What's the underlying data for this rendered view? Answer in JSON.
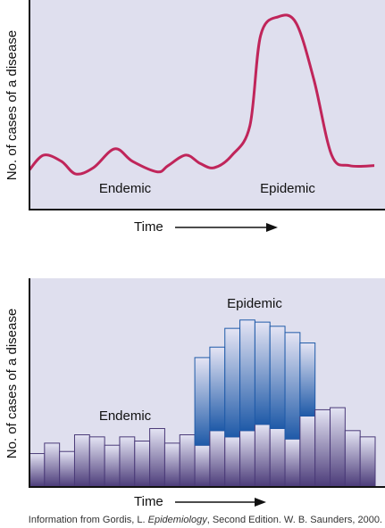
{
  "chart_data": [
    {
      "type": "line",
      "x_label": "Time",
      "y_label": "No. of cases of a disease",
      "annotations": [
        "Endemic",
        "Epidemic"
      ],
      "x": [
        0,
        4,
        9,
        13,
        18,
        24,
        29,
        36,
        39,
        44,
        48,
        52,
        57,
        62,
        65,
        70,
        75,
        80,
        85,
        90,
        97
      ],
      "values": [
        19,
        26,
        23,
        17,
        20,
        29,
        23,
        18,
        21,
        26,
        22,
        20,
        26,
        40,
        83,
        92,
        89,
        62,
        26,
        21,
        21
      ],
      "color": "#c0255a",
      "xlim": [
        0,
        100
      ],
      "ylim": [
        0,
        100
      ]
    },
    {
      "type": "stacked_bar",
      "x_label": "Time",
      "y_label": "No. of cases of a disease",
      "categories": [
        null,
        null,
        null,
        null,
        null,
        null,
        null,
        null,
        null,
        null,
        null,
        null,
        null,
        null,
        null,
        null,
        null,
        null,
        null,
        null,
        null,
        null,
        null
      ],
      "series": [
        {
          "name": "Endemic",
          "color": "#4a3a78",
          "values": [
            16,
            21,
            17,
            25,
            24,
            20,
            24,
            22,
            28,
            21,
            25,
            20,
            27,
            24,
            27,
            30,
            28,
            23,
            34,
            37,
            38,
            27,
            24
          ]
        },
        {
          "name": "Epidemic",
          "color": "#1f5aa8",
          "values": [
            null,
            null,
            null,
            null,
            null,
            null,
            null,
            null,
            null,
            null,
            null,
            42,
            40,
            52,
            53,
            49,
            49,
            51,
            35,
            null,
            null,
            null,
            null
          ]
        }
      ],
      "ylim": [
        0,
        100
      ]
    }
  ],
  "source": [
    "Information from Gordis, L. ",
    "Epidemiology",
    ", Second Edition. W. B. Saunders, 2000."
  ]
}
